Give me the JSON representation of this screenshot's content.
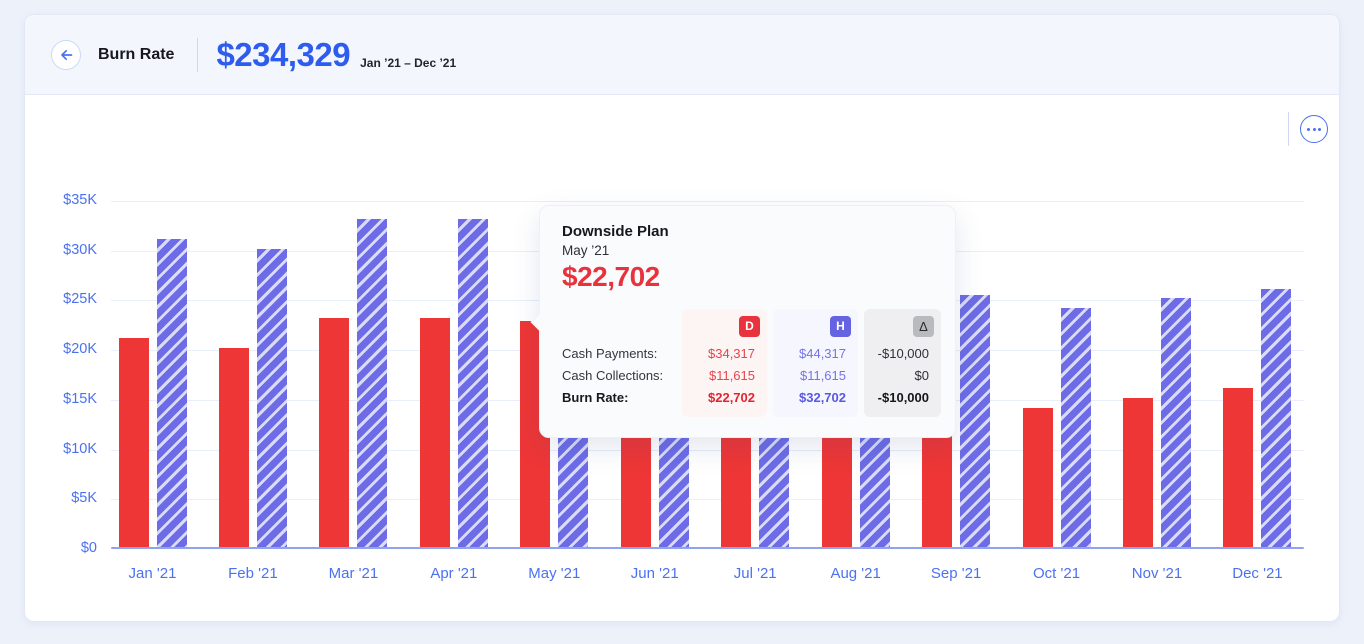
{
  "header": {
    "title": "Burn Rate",
    "amount": "$234,329",
    "range": "Jan ’21 – Dec ’21"
  },
  "tooltip": {
    "series": "Downside Plan",
    "month": "May ’21",
    "value": "$22,702",
    "columns": [
      {
        "key": "D",
        "badge": "D"
      },
      {
        "key": "H",
        "badge": "H"
      },
      {
        "key": "delta",
        "badge": "Δ"
      }
    ],
    "rows": [
      {
        "label": "Cash Payments:",
        "d": "$34,317",
        "h": "$44,317",
        "delta": "-$10,000"
      },
      {
        "label": "Cash Collections:",
        "d": "$11,615",
        "h": "$11,615",
        "delta": "$0"
      },
      {
        "label": "Burn Rate:",
        "d": "$22,702",
        "h": "$32,702",
        "delta": "-$10,000"
      }
    ]
  },
  "colors": {
    "accent_blue": "#2e5cee",
    "axis_blue": "#4b71f0",
    "bar_red": "#ee3636",
    "bar_purple": "#6d6ce6",
    "bar_purple_stripe": "#d9dbf8",
    "tooltip_red": "#e8323c",
    "badge_h_purple": "#6663e2",
    "header_bg": "#f3f7fd",
    "page_bg": "#edf1fa"
  },
  "chart_data": {
    "type": "bar",
    "title": "Burn Rate",
    "categories": [
      "Jan '21",
      "Feb '21",
      "Mar '21",
      "Apr '21",
      "May '21",
      "Jun '21",
      "Jul '21",
      "Aug '21",
      "Sep '21",
      "Oct '21",
      "Nov '21",
      "Dec '21"
    ],
    "series": [
      {
        "name": "Downside Plan (D)",
        "color": "#ee3636",
        "style": "solid",
        "values": [
          21000,
          20000,
          23000,
          23000,
          22702,
          21500,
          21500,
          21327,
          15300,
          14000,
          15000,
          16000
        ]
      },
      {
        "name": "H Plan",
        "color": "#6d6ce6",
        "stripe_color": "#d9dbf8",
        "style": "diagonal-hatch",
        "values": [
          31000,
          30000,
          33000,
          33000,
          32702,
          31500,
          31500,
          31327,
          25300,
          24000,
          25000,
          26000
        ]
      }
    ],
    "ylim": [
      0,
      35000
    ],
    "yticks": [
      {
        "value": 0,
        "label": "$0"
      },
      {
        "value": 5000,
        "label": "$5K"
      },
      {
        "value": 10000,
        "label": "$10K"
      },
      {
        "value": 15000,
        "label": "$15K"
      },
      {
        "value": 20000,
        "label": "$20K"
      },
      {
        "value": 25000,
        "label": "$25K"
      },
      {
        "value": 30000,
        "label": "$30K"
      },
      {
        "value": 35000,
        "label": "$35K"
      }
    ],
    "grid": true,
    "legend": "none"
  }
}
